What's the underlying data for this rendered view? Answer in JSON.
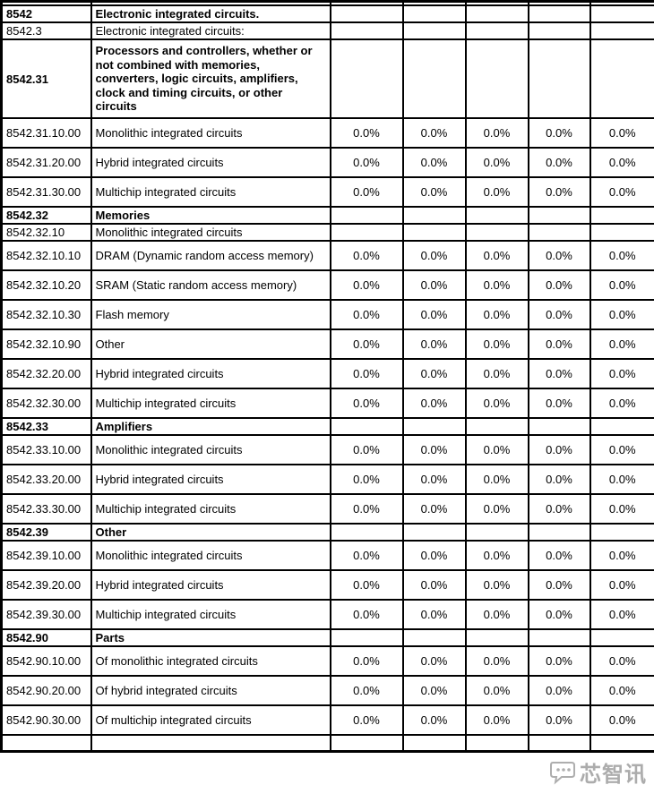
{
  "table": {
    "value_column_count": 5,
    "rows": [
      {
        "kind": "partial-top",
        "bold": false,
        "code": "",
        "desc": "",
        "values": null
      },
      {
        "kind": "section",
        "bold": true,
        "code": "8542",
        "desc": "Electronic integrated circuits.",
        "values": null
      },
      {
        "kind": "section",
        "bold": false,
        "code": "8542.3",
        "desc": "Electronic integrated circuits:",
        "values": null
      },
      {
        "kind": "tall",
        "bold": true,
        "code": "8542.31",
        "desc": "Processors and controllers, whether or\nnot combined with memories,\nconverters, logic circuits, amplifiers,\nclock and timing circuits, or other\ncircuits",
        "values": null
      },
      {
        "kind": "item",
        "bold": false,
        "code": "8542.31.10.00",
        "desc": "Monolithic integrated circuits",
        "values": [
          "0.0%",
          "0.0%",
          "0.0%",
          "0.0%",
          "0.0%"
        ]
      },
      {
        "kind": "item",
        "bold": false,
        "code": "8542.31.20.00",
        "desc": "Hybrid integrated circuits",
        "values": [
          "0.0%",
          "0.0%",
          "0.0%",
          "0.0%",
          "0.0%"
        ]
      },
      {
        "kind": "item",
        "bold": false,
        "code": "8542.31.30.00",
        "desc": "Multichip integrated circuits",
        "values": [
          "0.0%",
          "0.0%",
          "0.0%",
          "0.0%",
          "0.0%"
        ]
      },
      {
        "kind": "section",
        "bold": true,
        "code": "8542.32",
        "desc": "Memories",
        "values": null
      },
      {
        "kind": "subsection",
        "bold": false,
        "code": "8542.32.10",
        "desc": "Monolithic integrated circuits",
        "values": null
      },
      {
        "kind": "item",
        "bold": false,
        "code": "8542.32.10.10",
        "desc": "DRAM (Dynamic random access memory)",
        "values": [
          "0.0%",
          "0.0%",
          "0.0%",
          "0.0%",
          "0.0%"
        ]
      },
      {
        "kind": "item",
        "bold": false,
        "code": "8542.32.10.20",
        "desc": "SRAM (Static random access memory)",
        "values": [
          "0.0%",
          "0.0%",
          "0.0%",
          "0.0%",
          "0.0%"
        ]
      },
      {
        "kind": "item",
        "bold": false,
        "code": "8542.32.10.30",
        "desc": "Flash memory",
        "values": [
          "0.0%",
          "0.0%",
          "0.0%",
          "0.0%",
          "0.0%"
        ]
      },
      {
        "kind": "item",
        "bold": false,
        "code": "8542.32.10.90",
        "desc": "Other",
        "values": [
          "0.0%",
          "0.0%",
          "0.0%",
          "0.0%",
          "0.0%"
        ]
      },
      {
        "kind": "item",
        "bold": false,
        "code": "8542.32.20.00",
        "desc": "Hybrid integrated circuits",
        "values": [
          "0.0%",
          "0.0%",
          "0.0%",
          "0.0%",
          "0.0%"
        ]
      },
      {
        "kind": "item",
        "bold": false,
        "code": "8542.32.30.00",
        "desc": "Multichip integrated circuits",
        "values": [
          "0.0%",
          "0.0%",
          "0.0%",
          "0.0%",
          "0.0%"
        ]
      },
      {
        "kind": "section",
        "bold": true,
        "code": "8542.33",
        "desc": "Amplifiers",
        "values": null
      },
      {
        "kind": "item",
        "bold": false,
        "code": "8542.33.10.00",
        "desc": "Monolithic integrated circuits",
        "values": [
          "0.0%",
          "0.0%",
          "0.0%",
          "0.0%",
          "0.0%"
        ]
      },
      {
        "kind": "item",
        "bold": false,
        "code": "8542.33.20.00",
        "desc": "Hybrid integrated circuits",
        "values": [
          "0.0%",
          "0.0%",
          "0.0%",
          "0.0%",
          "0.0%"
        ]
      },
      {
        "kind": "item",
        "bold": false,
        "code": "8542.33.30.00",
        "desc": "Multichip integrated circuits",
        "values": [
          "0.0%",
          "0.0%",
          "0.0%",
          "0.0%",
          "0.0%"
        ]
      },
      {
        "kind": "section",
        "bold": true,
        "code": "8542.39",
        "desc": "Other",
        "values": null
      },
      {
        "kind": "item",
        "bold": false,
        "code": "8542.39.10.00",
        "desc": "Monolithic integrated circuits",
        "values": [
          "0.0%",
          "0.0%",
          "0.0%",
          "0.0%",
          "0.0%"
        ]
      },
      {
        "kind": "item",
        "bold": false,
        "code": "8542.39.20.00",
        "desc": "Hybrid integrated circuits",
        "values": [
          "0.0%",
          "0.0%",
          "0.0%",
          "0.0%",
          "0.0%"
        ]
      },
      {
        "kind": "item",
        "bold": false,
        "code": "8542.39.30.00",
        "desc": "Multichip integrated circuits",
        "values": [
          "0.0%",
          "0.0%",
          "0.0%",
          "0.0%",
          "0.0%"
        ]
      },
      {
        "kind": "section",
        "bold": true,
        "code": "8542.90",
        "desc": "Parts",
        "values": null
      },
      {
        "kind": "item",
        "bold": false,
        "code": "8542.90.10.00",
        "desc": "Of monolithic integrated circuits",
        "values": [
          "0.0%",
          "0.0%",
          "0.0%",
          "0.0%",
          "0.0%"
        ]
      },
      {
        "kind": "item",
        "bold": false,
        "code": "8542.90.20.00",
        "desc": "Of hybrid integrated circuits",
        "values": [
          "0.0%",
          "0.0%",
          "0.0%",
          "0.0%",
          "0.0%"
        ]
      },
      {
        "kind": "item",
        "bold": false,
        "code": "8542.90.30.00",
        "desc": "Of multichip integrated circuits",
        "values": [
          "0.0%",
          "0.0%",
          "0.0%",
          "0.0%",
          "0.0%"
        ]
      },
      {
        "kind": "partial-bottom",
        "bold": false,
        "code": "",
        "desc": "",
        "values": null
      }
    ]
  },
  "watermark": {
    "text": "芯智讯"
  }
}
